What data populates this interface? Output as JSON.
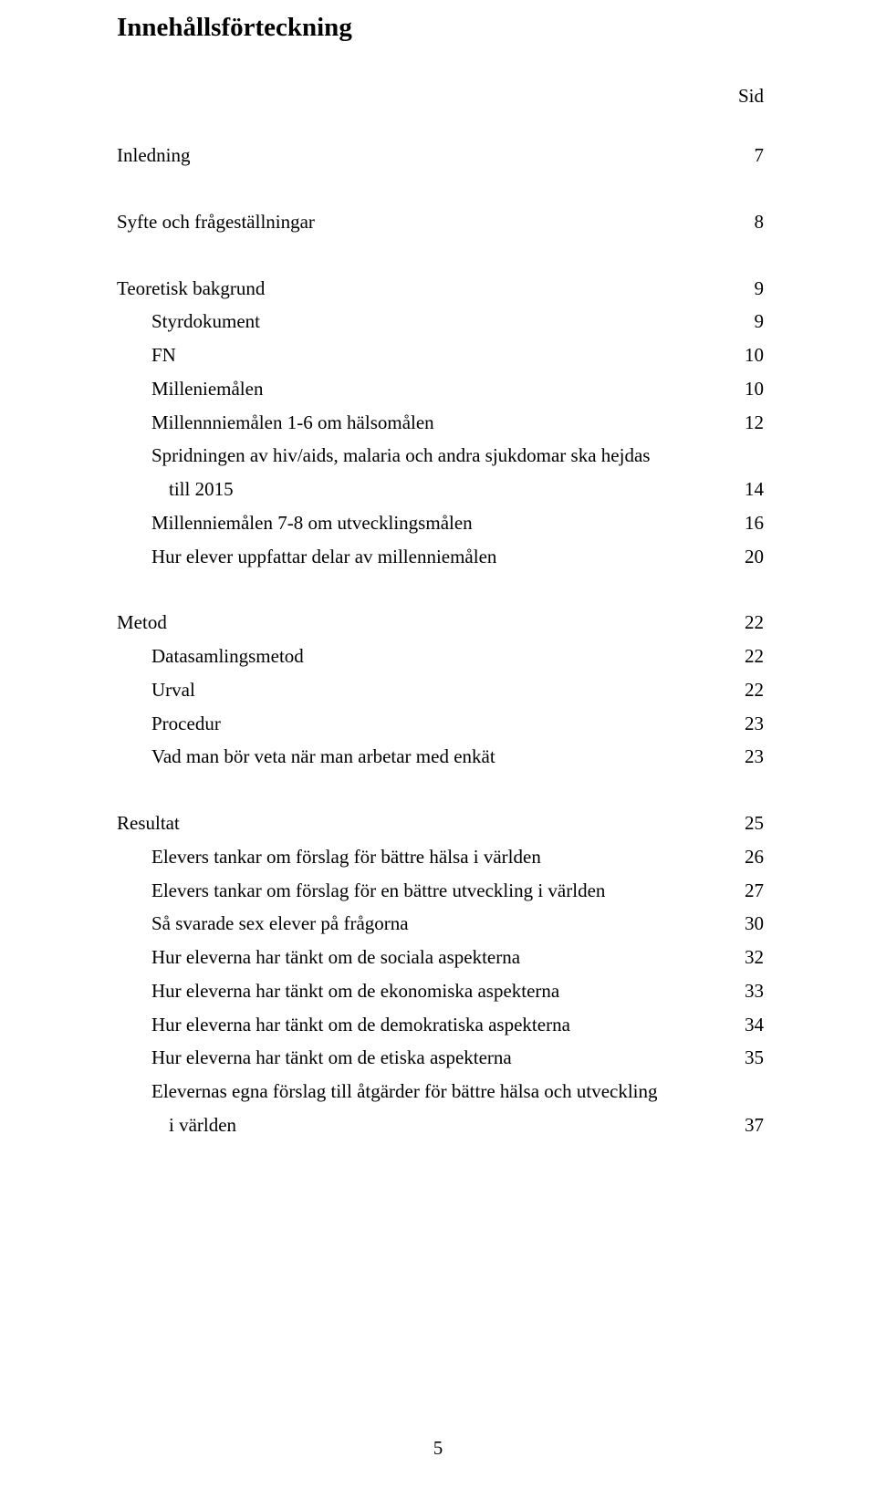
{
  "title": "Innehållsförteckning",
  "sidLabel": "Sid",
  "entries": [
    {
      "label": "Inledning",
      "page": "7",
      "indent": 0,
      "gap": false
    },
    {
      "label": "Syfte och frågeställningar",
      "page": "8",
      "indent": 0,
      "gap": true
    },
    {
      "label": "Teoretisk bakgrund",
      "page": "9",
      "indent": 0,
      "gap": true
    },
    {
      "label": "Styrdokument",
      "page": "9",
      "indent": 1,
      "gap": false
    },
    {
      "label": "FN",
      "page": "10",
      "indent": 1,
      "gap": false
    },
    {
      "label": "Milleniemålen",
      "page": "10",
      "indent": 1,
      "gap": false
    },
    {
      "label": "Millennniemålen 1-6 om hälsomålen",
      "page": "12",
      "indent": 1,
      "gap": false
    },
    {
      "label": "Spridningen av hiv/aids, malaria och andra sjukdomar ska hejdas",
      "page": "",
      "indent": 1,
      "gap": false,
      "wrap": true
    },
    {
      "label": " till 2015",
      "page": "14",
      "indent": 2,
      "gap": false,
      "wrapLine": true
    },
    {
      "label": "Millenniemålen 7-8 om utvecklingsmålen",
      "page": "16",
      "indent": 1,
      "gap": false
    },
    {
      "label": "Hur elever uppfattar delar av millenniemålen",
      "page": "20",
      "indent": 1,
      "gap": false
    },
    {
      "label": "Metod",
      "page": "22",
      "indent": 0,
      "gap": true
    },
    {
      "label": "Datasamlingsmetod",
      "page": "22",
      "indent": 1,
      "gap": false
    },
    {
      "label": "Urval",
      "page": "22",
      "indent": 1,
      "gap": false
    },
    {
      "label": "Procedur",
      "page": "23",
      "indent": 1,
      "gap": false
    },
    {
      "label": "Vad man bör veta när man arbetar med enkät",
      "page": "23",
      "indent": 1,
      "gap": false
    },
    {
      "label": "Resultat",
      "page": "25",
      "indent": 0,
      "gap": true
    },
    {
      "label": "Elevers tankar om förslag för bättre hälsa i världen",
      "page": "26",
      "indent": 1,
      "gap": false
    },
    {
      "label": "Elevers tankar om förslag för en bättre utveckling i världen",
      "page": "27",
      "indent": 1,
      "gap": false
    },
    {
      "label": "Så svarade sex elever på frågorna",
      "page": "30",
      "indent": 1,
      "gap": false
    },
    {
      "label": "Hur eleverna har tänkt om de sociala aspekterna",
      "page": "32",
      "indent": 1,
      "gap": false
    },
    {
      "label": "Hur eleverna har tänkt om de ekonomiska aspekterna",
      "page": "33",
      "indent": 1,
      "gap": false
    },
    {
      "label": "Hur eleverna har tänkt om de demokratiska aspekterna",
      "page": "34",
      "indent": 1,
      "gap": false
    },
    {
      "label": "Hur eleverna har tänkt om de etiska aspekterna",
      "page": "35",
      "indent": 1,
      "gap": false
    },
    {
      "label": "Elevernas egna förslag till åtgärder för bättre hälsa och utveckling",
      "page": "",
      "indent": 1,
      "gap": false,
      "wrap": true
    },
    {
      "label": " i världen",
      "page": "37",
      "indent": 2,
      "gap": false,
      "wrapLine": true
    }
  ],
  "footerPage": "5"
}
